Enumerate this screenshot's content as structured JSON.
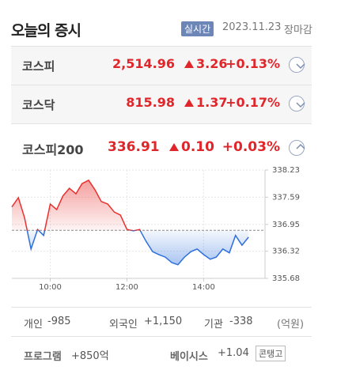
{
  "header": {
    "title": "오늘의 증시",
    "badge": "실시간",
    "date": "2023.11.23",
    "status": "장마감"
  },
  "indices": [
    {
      "name": "코스피",
      "value": "2,514.96",
      "change": "3.26",
      "rate": "+0.13%"
    },
    {
      "name": "코스닥",
      "value": "815.98",
      "change": "1.37",
      "rate": "+0.17%"
    },
    {
      "name": "코스피200",
      "value": "336.91",
      "change": "0.10",
      "rate": "+0.03%"
    }
  ],
  "chart": {
    "type": "line",
    "x": [
      9.0,
      9.17,
      9.33,
      9.5,
      9.67,
      9.83,
      10.0,
      10.17,
      10.33,
      10.5,
      10.67,
      10.83,
      11.0,
      11.17,
      11.33,
      11.5,
      11.67,
      11.83,
      12.0,
      12.17,
      12.33,
      12.5,
      12.67,
      12.83,
      13.0,
      13.17,
      13.33,
      13.5,
      13.67,
      13.83,
      14.0,
      14.17,
      14.33,
      14.5,
      14.67,
      14.83,
      15.0,
      15.17
    ],
    "values": [
      337.36,
      337.58,
      337.11,
      336.37,
      336.83,
      336.69,
      337.43,
      337.3,
      337.62,
      337.8,
      337.67,
      337.91,
      337.99,
      337.76,
      337.49,
      337.43,
      337.24,
      337.17,
      336.83,
      336.8,
      336.83,
      336.55,
      336.31,
      336.24,
      336.18,
      336.05,
      336.0,
      336.18,
      336.31,
      336.37,
      336.24,
      336.13,
      336.18,
      336.37,
      336.28,
      336.69,
      336.46,
      336.65
    ],
    "baseline": 336.81,
    "xlim": [
      9,
      15.6
    ],
    "xticks": [
      {
        "value": 10,
        "label": "10:00"
      },
      {
        "value": 12,
        "label": "12:00"
      },
      {
        "value": 14,
        "label": "14:00"
      }
    ],
    "ylim": [
      335.68,
      338.23
    ],
    "yticks": [
      338.23,
      337.59,
      336.95,
      336.32,
      335.68
    ],
    "colors": {
      "up": "#e8312f",
      "down": "#2c6fdc"
    },
    "grid": true
  },
  "investors": [
    {
      "name": "개인",
      "value": "-985"
    },
    {
      "name": "외국인",
      "value": "+1,150"
    },
    {
      "name": "기관",
      "value": "-338"
    }
  ],
  "unit": "(억원)",
  "program": {
    "name": "프로그램",
    "value": "+850억"
  },
  "basis": {
    "name": "베이시스",
    "value": "+1.04",
    "tag": "콘탱고"
  }
}
